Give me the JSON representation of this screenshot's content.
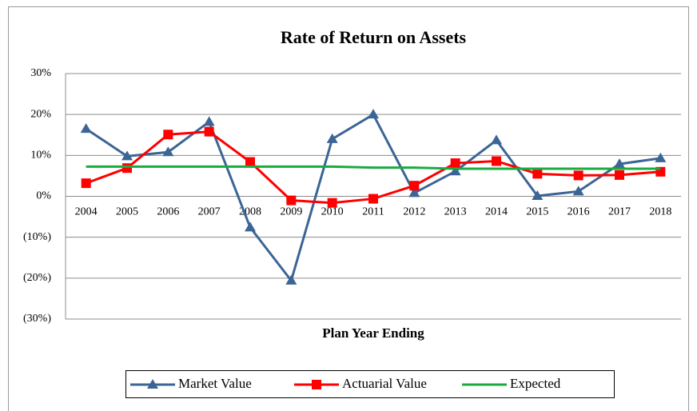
{
  "chart_data": {
    "type": "line",
    "title": "Rate of Return on Assets",
    "x_label": "Plan Year Ending",
    "categories": [
      "2004",
      "2005",
      "2006",
      "2007",
      "2008",
      "2009",
      "2010",
      "2011",
      "2012",
      "2013",
      "2014",
      "2015",
      "2016",
      "2017",
      "2018"
    ],
    "series": [
      {
        "name": "Market Value",
        "color": "#3b6595",
        "marker": "triangle",
        "values": [
          16.5,
          9.8,
          10.8,
          18.2,
          -7.6,
          -20.6,
          14.0,
          20.0,
          0.8,
          6.1,
          13.7,
          0.1,
          1.2,
          7.9,
          9.3
        ]
      },
      {
        "name": "Actuarial Value",
        "color": "#ff0000",
        "marker": "square",
        "values": [
          3.2,
          6.9,
          15.1,
          15.8,
          8.4,
          -1.0,
          -1.6,
          -0.6,
          2.6,
          8.1,
          8.6,
          5.5,
          5.1,
          5.2,
          6.0
        ]
      },
      {
        "name": "Expected",
        "color": "#1aab40",
        "marker": "none",
        "values": [
          7.25,
          7.25,
          7.25,
          7.25,
          7.25,
          7.25,
          7.25,
          7.0,
          7.0,
          6.75,
          6.75,
          6.75,
          6.75,
          6.75,
          6.75
        ]
      }
    ],
    "ylim": [
      -30,
      30
    ],
    "yticks": [
      {
        "value": 30,
        "label": "30%"
      },
      {
        "value": 20,
        "label": "20%"
      },
      {
        "value": 10,
        "label": "10%"
      },
      {
        "value": 0,
        "label": "0%"
      },
      {
        "value": -10,
        "label": "(10%)"
      },
      {
        "value": -20,
        "label": "(20%)"
      },
      {
        "value": -30,
        "label": "(30%)"
      }
    ],
    "grid": true,
    "legend": "bottom"
  }
}
